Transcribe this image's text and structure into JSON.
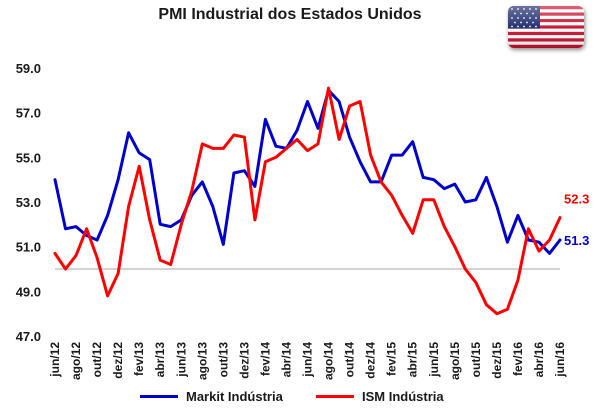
{
  "page": {
    "title": "PMI Industrial dos Estados Unidos"
  },
  "flag_icon": "us-flag-icon",
  "chart_data": {
    "type": "line",
    "title": "PMI Industrial dos Estados Unidos",
    "xlabel": "",
    "ylabel": "",
    "ylim": [
      47.0,
      59.0
    ],
    "yticks": [
      "59.0",
      "57.0",
      "55.0",
      "53.0",
      "51.0",
      "49.0",
      "47.0"
    ],
    "reference_line": 50.0,
    "grid": false,
    "legend_position": "bottom",
    "x": [
      "jun/12",
      "jul/12",
      "ago/12",
      "set/12",
      "out/12",
      "nov/12",
      "dez/12",
      "jan/13",
      "fev/13",
      "mar/13",
      "abr/13",
      "mai/13",
      "jun/13",
      "jul/13",
      "ago/13",
      "set/13",
      "out/13",
      "nov/13",
      "dez/13",
      "jan/14",
      "fev/14",
      "mar/14",
      "abr/14",
      "mai/14",
      "jun/14",
      "jul/14",
      "ago/14",
      "set/14",
      "out/14",
      "nov/14",
      "dez/14",
      "jan/15",
      "fev/15",
      "mar/15",
      "abr/15",
      "mai/15",
      "jun/15",
      "jul/15",
      "ago/15",
      "set/15",
      "out/15",
      "nov/15",
      "dez/15",
      "jan/16",
      "fev/16",
      "mar/16",
      "abr/16",
      "mai/16",
      "jun/16"
    ],
    "xticks": [
      "jun/12",
      "ago/12",
      "out/12",
      "dez/12",
      "fev/13",
      "abr/13",
      "jun/13",
      "ago/13",
      "out/13",
      "dez/13",
      "fev/14",
      "abr/14",
      "jun/14",
      "ago/14",
      "out/14",
      "dez/14",
      "fev/15",
      "abr/15",
      "jun/15",
      "ago/15",
      "out/15",
      "dez/15",
      "fev/16",
      "abr/16",
      "jun/16"
    ],
    "series": [
      {
        "name": "Markit Indústria",
        "color": "#0000cc",
        "end_label": "51.3",
        "values": [
          54.0,
          51.8,
          51.9,
          51.5,
          51.3,
          52.4,
          54.0,
          56.1,
          55.2,
          54.9,
          52.0,
          51.9,
          52.2,
          53.3,
          53.9,
          52.8,
          51.1,
          54.3,
          54.4,
          53.7,
          56.7,
          55.5,
          55.4,
          56.2,
          57.5,
          56.3,
          58.0,
          57.5,
          55.9,
          54.8,
          53.9,
          53.9,
          55.1,
          55.1,
          55.7,
          54.1,
          54.0,
          53.6,
          53.8,
          53.0,
          53.1,
          54.1,
          52.8,
          51.2,
          52.4,
          51.3,
          51.2,
          50.7,
          51.3
        ]
      },
      {
        "name": "ISM Indústria",
        "color": "#ff0000",
        "end_label": "52.3",
        "values": [
          50.7,
          50.0,
          50.6,
          51.8,
          50.5,
          48.8,
          49.8,
          52.8,
          54.6,
          52.2,
          50.4,
          50.2,
          52.0,
          53.5,
          55.6,
          55.4,
          55.4,
          56.0,
          55.9,
          52.2,
          54.8,
          55.0,
          55.4,
          55.8,
          55.3,
          55.6,
          58.1,
          55.8,
          57.3,
          57.5,
          55.1,
          53.9,
          53.3,
          52.4,
          51.6,
          53.1,
          53.1,
          51.9,
          51.0,
          50.0,
          49.4,
          48.4,
          48.0,
          48.2,
          49.5,
          51.8,
          50.8,
          51.3,
          52.3
        ]
      }
    ]
  }
}
